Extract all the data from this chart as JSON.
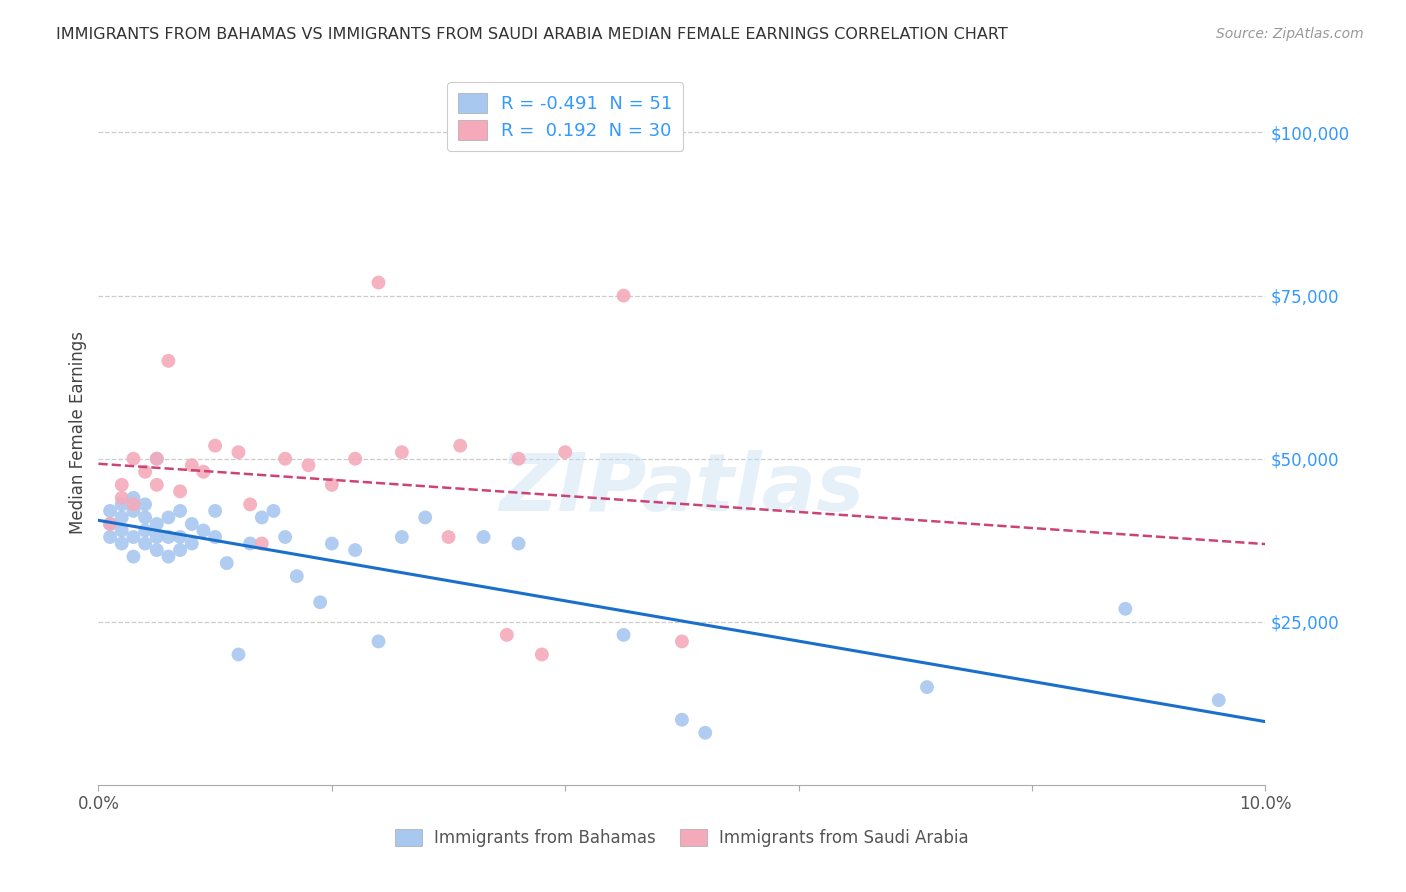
{
  "title": "IMMIGRANTS FROM BAHAMAS VS IMMIGRANTS FROM SAUDI ARABIA MEDIAN FEMALE EARNINGS CORRELATION CHART",
  "source": "Source: ZipAtlas.com",
  "ylabel": "Median Female Earnings",
  "ytick_labels": [
    "$25,000",
    "$50,000",
    "$75,000",
    "$100,000"
  ],
  "ytick_values": [
    25000,
    50000,
    75000,
    100000
  ],
  "ylim": [
    0,
    108000
  ],
  "xlim": [
    0,
    0.1
  ],
  "watermark": "ZIPatlas",
  "legend_r_bahamas": "-0.491",
  "legend_n_bahamas": "51",
  "legend_r_saudi": "0.192",
  "legend_n_saudi": "30",
  "color_bahamas": "#A8C8F0",
  "color_saudi": "#F4AABB",
  "color_blue_text": "#3399FF",
  "color_pink_text": "#E05070",
  "color_line_bahamas": "#1A6FCC",
  "color_line_saudi": "#CC4477",
  "bahamas_x": [
    0.001,
    0.001,
    0.001,
    0.002,
    0.002,
    0.002,
    0.002,
    0.003,
    0.003,
    0.003,
    0.003,
    0.004,
    0.004,
    0.004,
    0.004,
    0.005,
    0.005,
    0.005,
    0.005,
    0.006,
    0.006,
    0.006,
    0.007,
    0.007,
    0.007,
    0.008,
    0.008,
    0.009,
    0.01,
    0.01,
    0.011,
    0.012,
    0.013,
    0.014,
    0.015,
    0.016,
    0.017,
    0.019,
    0.02,
    0.022,
    0.024,
    0.026,
    0.028,
    0.033,
    0.036,
    0.045,
    0.05,
    0.052,
    0.071,
    0.088,
    0.096
  ],
  "bahamas_y": [
    42000,
    40000,
    38000,
    43000,
    41000,
    39000,
    37000,
    44000,
    42000,
    38000,
    35000,
    43000,
    41000,
    39000,
    37000,
    40000,
    38000,
    36000,
    50000,
    41000,
    38000,
    35000,
    42000,
    38000,
    36000,
    40000,
    37000,
    39000,
    42000,
    38000,
    34000,
    20000,
    37000,
    41000,
    42000,
    38000,
    32000,
    28000,
    37000,
    36000,
    22000,
    38000,
    41000,
    38000,
    37000,
    23000,
    10000,
    8000,
    15000,
    27000,
    13000
  ],
  "saudi_x": [
    0.001,
    0.002,
    0.002,
    0.003,
    0.003,
    0.004,
    0.005,
    0.005,
    0.006,
    0.007,
    0.008,
    0.009,
    0.01,
    0.012,
    0.013,
    0.014,
    0.016,
    0.018,
    0.02,
    0.022,
    0.024,
    0.026,
    0.03,
    0.031,
    0.035,
    0.036,
    0.038,
    0.04,
    0.045,
    0.05
  ],
  "saudi_y": [
    40000,
    44000,
    46000,
    43000,
    50000,
    48000,
    50000,
    46000,
    65000,
    45000,
    49000,
    48000,
    52000,
    51000,
    43000,
    37000,
    50000,
    49000,
    46000,
    50000,
    77000,
    51000,
    38000,
    52000,
    23000,
    50000,
    20000,
    51000,
    75000,
    22000
  ]
}
